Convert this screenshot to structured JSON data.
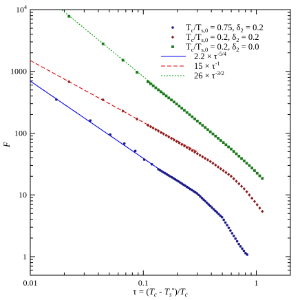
{
  "chart_data": {
    "type": "scatter",
    "xscale": "log",
    "yscale": "log",
    "xlim": [
      0.01,
      2
    ],
    "ylim": [
      0.5,
      10000
    ],
    "xticks": [
      {
        "value": 0.01,
        "label": "0.01"
      },
      {
        "value": 0.1,
        "label": "0.1"
      },
      {
        "value": 1,
        "label": "1"
      }
    ],
    "yticks": [
      {
        "value": 1,
        "label": "1"
      },
      {
        "value": 10,
        "label": "10"
      },
      {
        "value": 100,
        "label": "100"
      },
      {
        "value": 1000,
        "label": "1000"
      },
      {
        "value": 10000,
        "label": "10",
        "sup": "4"
      }
    ],
    "xlabel": "τ = (T_c − T_s*)/T_c",
    "ylabel": "F",
    "grid": false,
    "legend_position": "top-right",
    "series": [
      {
        "name": "Tc/Ts,0 = 0.75, δ2 = 0.2",
        "legend_parts": [
          "T",
          "c",
          "/T",
          "s,0",
          " = 0.75, δ",
          "2",
          " = 0.2"
        ],
        "marker": "circle",
        "color": "#1a1a8c",
        "x_range": [
          0.015,
          0.83
        ],
        "n_points": 61,
        "values_fn": "2.2*x^-1.25 below 0.14, then steeper roll-off",
        "y_at": [
          [
            0.017,
            350
          ],
          [
            0.034,
            160
          ],
          [
            0.05,
            97
          ],
          [
            0.068,
            68
          ],
          [
            0.09,
            48
          ],
          [
            0.1,
            38
          ],
          [
            0.12,
            31
          ],
          [
            0.136,
            26
          ],
          [
            0.2,
            17
          ],
          [
            0.3,
            10.5
          ],
          [
            0.5,
            4.3
          ],
          [
            0.7,
            1.6
          ],
          [
            0.82,
            1.08
          ]
        ]
      },
      {
        "name": "Tc/Ts,0 = 0.2, δ2 = 0.2",
        "legend_parts": [
          "T",
          "c",
          "/T",
          "s,0",
          " = 0.2, δ",
          "2",
          " = 0.2"
        ],
        "marker": "diamond",
        "color": "#8b1a1a",
        "x_range": [
          0.022,
          1.13
        ],
        "n_points": 50,
        "y_at": [
          [
            0.022,
            680
          ],
          [
            0.045,
            340
          ],
          [
            0.09,
            165
          ],
          [
            0.15,
            98
          ],
          [
            0.25,
            57
          ],
          [
            0.4,
            34
          ],
          [
            0.6,
            20
          ],
          [
            0.8,
            12
          ],
          [
            1.0,
            7.2
          ],
          [
            1.13,
            5.4
          ]
        ]
      },
      {
        "name": "Tc/Ts,0 = 0.2, δ2 = 0.0",
        "legend_parts": [
          "T",
          "c",
          "/T",
          "s,0",
          " = 0.2, δ",
          "2",
          " = 0.0"
        ],
        "marker": "square",
        "color": "#1a7a1a",
        "x_range": [
          0.022,
          1.13
        ],
        "n_points": 50,
        "y_at": [
          [
            0.022,
            7800
          ],
          [
            0.045,
            2700
          ],
          [
            0.068,
            1450
          ],
          [
            0.11,
            680
          ],
          [
            0.2,
            290
          ],
          [
            0.35,
            125
          ],
          [
            0.6,
            55
          ],
          [
            0.9,
            28
          ],
          [
            1.13,
            18.5
          ]
        ]
      }
    ],
    "fit_lines": [
      {
        "name": "2.2 × τ^-5/4",
        "legend_main": "2.2 × τ",
        "legend_sup": "-5/4",
        "coef": 2.2,
        "exponent": -1.25,
        "x_range": [
          0.01,
          0.14
        ],
        "color": "#0000ee",
        "style": "solid"
      },
      {
        "name": "15 × τ^-1",
        "legend_main": "15 × τ",
        "legend_sup": "-1",
        "coef": 15,
        "exponent": -1,
        "x_range": [
          0.01,
          0.3
        ],
        "color": "#dd0000",
        "style": "dashed"
      },
      {
        "name": "26 × τ^-3/2",
        "legend_main": "26 × τ",
        "legend_sup": "-3/2",
        "coef": 26,
        "exponent": -1.5,
        "x_range": [
          0.018,
          0.18
        ],
        "color": "#009900",
        "style": "dotted"
      }
    ]
  }
}
